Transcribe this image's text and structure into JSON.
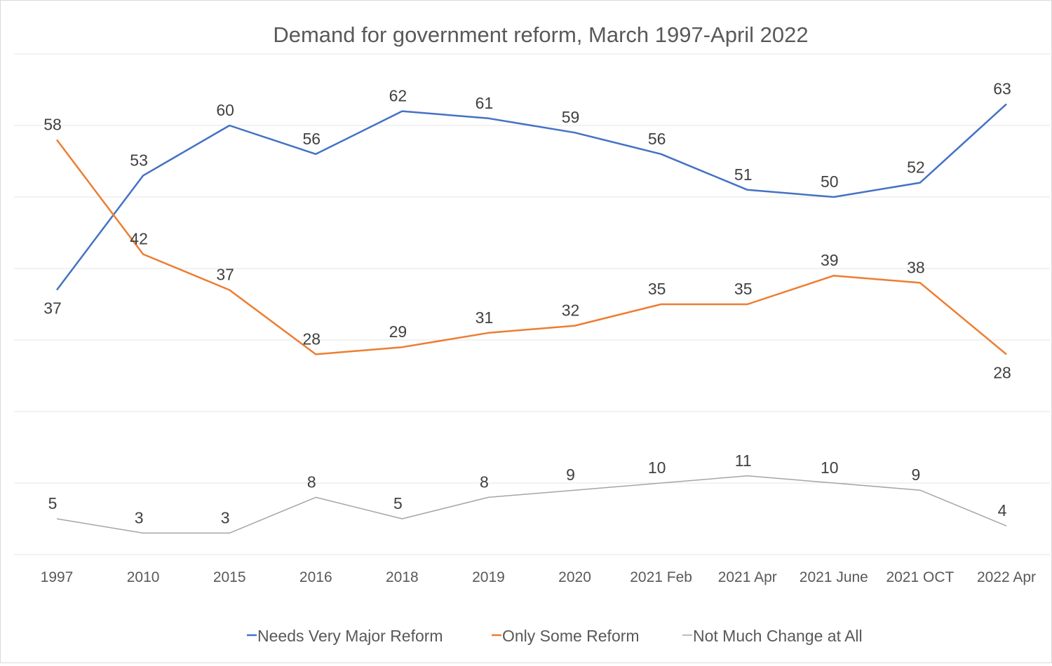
{
  "chart_data": {
    "type": "line",
    "title": "Demand for government reform, March 1997-April 2022",
    "xlabel": "",
    "ylabel": "",
    "ylim": [
      0,
      70
    ],
    "grid": true,
    "y_axis_labels_shown": false,
    "legend_position": "bottom",
    "categories": [
      "1997",
      "2010",
      "2015",
      "2016",
      "2018",
      "2019",
      "2020",
      "2021 Feb",
      "2021 Apr",
      "2021 June",
      "2021 OCT",
      "2022 Apr"
    ],
    "series": [
      {
        "name": "Needs Very Major Reform",
        "color": "#4472c4",
        "values": [
          37,
          53,
          60,
          56,
          62,
          61,
          59,
          56,
          51,
          50,
          52,
          63
        ],
        "label_position": [
          "below",
          "above",
          "above",
          "above",
          "above",
          "above",
          "above",
          "above",
          "above",
          "above",
          "above",
          "above"
        ]
      },
      {
        "name": "Only Some Reform",
        "color": "#ed7d31",
        "values": [
          58,
          42,
          37,
          28,
          29,
          31,
          32,
          35,
          35,
          39,
          38,
          28
        ],
        "label_position": [
          "above",
          "above",
          "above",
          "above",
          "above",
          "above",
          "above",
          "above",
          "above",
          "above",
          "above",
          "below"
        ]
      },
      {
        "name": "Not Much Change at All",
        "color": "#a5a5a5",
        "values": [
          5,
          3,
          3,
          8,
          5,
          8,
          9,
          10,
          11,
          10,
          9,
          4
        ],
        "label_position": [
          "above",
          "above",
          "above",
          "above",
          "above",
          "above",
          "above",
          "above",
          "above",
          "above",
          "above",
          "above"
        ]
      }
    ]
  }
}
